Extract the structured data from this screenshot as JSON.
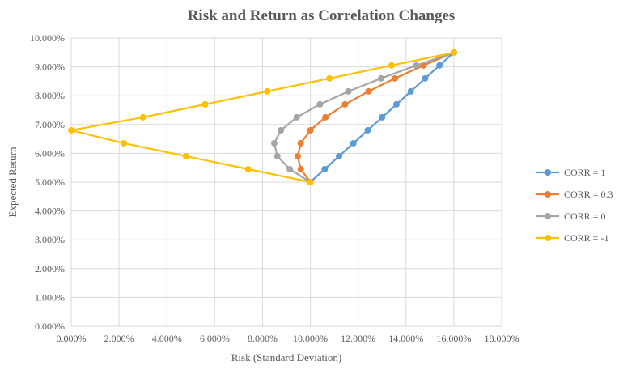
{
  "chart_data": {
    "type": "line",
    "title": "Risk and Return as Correlation Changes",
    "xlabel": "Risk (Standard Deviation)",
    "ylabel": "Expected Return",
    "xlim": [
      0,
      18
    ],
    "ylim": [
      0,
      10
    ],
    "x_ticks": [
      "0.000%",
      "2.000%",
      "4.000%",
      "6.000%",
      "8.000%",
      "10.000%",
      "12.000%",
      "14.000%",
      "16.000%",
      "18.000%"
    ],
    "y_ticks": [
      "0.000%",
      "1.000%",
      "2.000%",
      "3.000%",
      "4.000%",
      "5.000%",
      "6.000%",
      "7.000%",
      "8.000%",
      "9.000%",
      "10.000%"
    ],
    "grid": "vertical and horizontal",
    "legend_position": "right",
    "series": [
      {
        "name": "CORR = 1",
        "color": "#5B9BD5",
        "x": [
          10,
          10.6,
          11.2,
          11.8,
          12.4,
          13,
          13.6,
          14.2,
          14.8,
          15.4,
          16
        ],
        "y": [
          5,
          5.45,
          5.9,
          6.35,
          6.8,
          7.25,
          7.7,
          8.15,
          8.6,
          9.05,
          9.5
        ]
      },
      {
        "name": "CORR = 0.3",
        "color": "#ED7D31",
        "x": [
          10,
          9.6,
          9.47,
          9.6,
          10,
          10.63,
          11.45,
          12.43,
          13.54,
          14.73,
          16
        ],
        "y": [
          5,
          5.45,
          5.9,
          6.35,
          6.8,
          7.25,
          7.7,
          8.15,
          8.6,
          9.05,
          9.5
        ]
      },
      {
        "name": "CORR = 0",
        "color": "#A5A5A5",
        "x": [
          10,
          9.14,
          8.62,
          8.49,
          8.77,
          9.43,
          10.4,
          11.59,
          12.96,
          14.43,
          16
        ],
        "y": [
          5,
          5.45,
          5.9,
          6.35,
          6.8,
          7.25,
          7.7,
          8.15,
          8.6,
          9.05,
          9.5
        ]
      },
      {
        "name": "CORR = -1",
        "color": "#FFC000",
        "x": [
          10,
          7.4,
          4.8,
          2.2,
          0.0,
          3.0,
          5.6,
          8.2,
          10.8,
          13.4,
          16
        ],
        "y": [
          5,
          5.45,
          5.9,
          6.35,
          6.8,
          7.25,
          7.7,
          8.15,
          8.6,
          9.05,
          9.5
        ]
      }
    ]
  }
}
